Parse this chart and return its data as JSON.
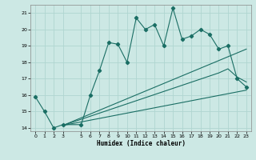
{
  "xlabel": "Humidex (Indice chaleur)",
  "bg_color": "#cce8e4",
  "grid_color": "#b0d5d0",
  "line_color": "#1a6e64",
  "xlim": [
    -0.5,
    23.5
  ],
  "ylim": [
    13.8,
    21.5
  ],
  "xticks": [
    0,
    1,
    2,
    3,
    5,
    6,
    7,
    8,
    9,
    10,
    11,
    12,
    13,
    14,
    15,
    16,
    17,
    18,
    19,
    20,
    21,
    22,
    23
  ],
  "yticks": [
    14,
    15,
    16,
    17,
    18,
    19,
    20,
    21
  ],
  "series1_x": [
    0,
    1,
    2,
    3,
    5,
    6,
    7,
    8,
    9,
    10,
    11,
    12,
    13,
    14,
    15,
    16,
    17,
    18,
    19,
    20,
    21,
    22,
    23
  ],
  "series1_y": [
    15.9,
    15.0,
    14.0,
    14.2,
    14.2,
    16.0,
    17.5,
    19.2,
    19.1,
    18.0,
    20.7,
    20.0,
    20.3,
    19.0,
    21.3,
    19.4,
    19.6,
    20.0,
    19.7,
    18.8,
    19.0,
    17.0,
    16.5
  ],
  "series2_x": [
    3,
    23
  ],
  "series2_y": [
    14.15,
    18.8
  ],
  "series3_x": [
    3,
    20,
    21,
    22,
    23
  ],
  "series3_y": [
    14.15,
    17.35,
    17.6,
    17.1,
    16.8
  ],
  "series4_x": [
    3,
    23
  ],
  "series4_y": [
    14.15,
    16.3
  ]
}
